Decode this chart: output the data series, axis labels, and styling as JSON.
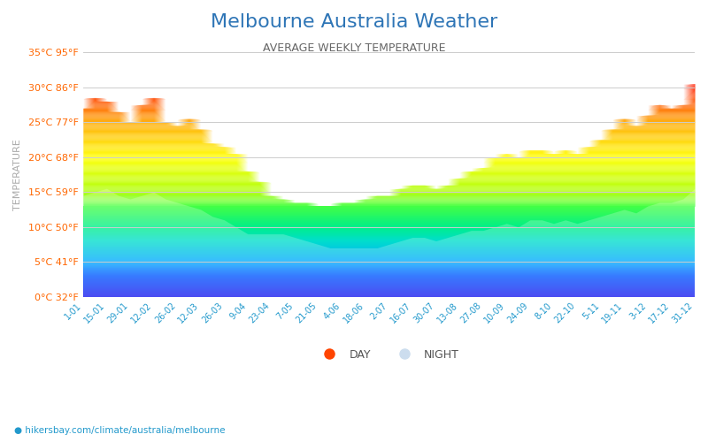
{
  "title": "Melbourne Australia Weather",
  "subtitle": "AVERAGE WEEKLY TEMPERATURE",
  "ylabel": "TEMPERATURE",
  "xlabel_ticks": [
    "1-01",
    "15-01",
    "29-01",
    "12-02",
    "26-02",
    "12-03",
    "26-03",
    "9-04",
    "23-04",
    "7-05",
    "21-05",
    "4-06",
    "18-06",
    "2-07",
    "16-07",
    "30-07",
    "13-08",
    "27-08",
    "10-09",
    "24-09",
    "8-10",
    "22-10",
    "5-11",
    "19-11",
    "3-12",
    "17-12",
    "31-12"
  ],
  "ytick_labels_left": [
    "0°C 32°F",
    "5°C 41°F",
    "10°C 50°F",
    "15°C 59°F",
    "20°C 68°F",
    "25°C 77°F",
    "30°C 86°F",
    "35°C 95°F"
  ],
  "ytick_values": [
    0,
    5,
    10,
    15,
    20,
    25,
    30,
    35
  ],
  "ymin": 0,
  "ymax": 35,
  "title_color": "#2e75b6",
  "subtitle_color": "#666666",
  "ytick_color": "#ff6600",
  "watermark": "hikersbay.com/climate/australia/melbourne",
  "color_stops": [
    [
      0,
      "#1a1aee"
    ],
    [
      3,
      "#0055ff"
    ],
    [
      5,
      "#00aaff"
    ],
    [
      8,
      "#00ddcc"
    ],
    [
      10,
      "#00ee88"
    ],
    [
      13,
      "#44ff44"
    ],
    [
      15,
      "#aaff00"
    ],
    [
      18,
      "#ddff00"
    ],
    [
      20,
      "#ffff00"
    ],
    [
      22,
      "#ffdd00"
    ],
    [
      25,
      "#ffaa00"
    ],
    [
      28,
      "#ff5500"
    ],
    [
      30,
      "#ff2200"
    ],
    [
      35,
      "#ff0000"
    ]
  ],
  "day_values": [
    27.0,
    28.5,
    28.0,
    26.5,
    25.0,
    27.5,
    28.5,
    25.0,
    24.5,
    25.5,
    24.0,
    22.0,
    21.5,
    20.5,
    18.0,
    16.5,
    14.5,
    14.0,
    13.5,
    13.5,
    13.0,
    13.0,
    13.5,
    13.5,
    14.0,
    14.5,
    14.5,
    15.5,
    16.0,
    16.0,
    15.5,
    16.0,
    17.0,
    18.0,
    18.5,
    20.0,
    20.5,
    20.0,
    21.0,
    21.0,
    20.5,
    21.0,
    20.5,
    21.5,
    22.5,
    24.0,
    25.5,
    24.5,
    26.0,
    27.5,
    27.0,
    27.5,
    30.5
  ],
  "night_values": [
    14.5,
    15.0,
    15.5,
    14.5,
    14.0,
    14.5,
    15.0,
    14.0,
    13.5,
    13.0,
    12.5,
    11.5,
    11.0,
    10.0,
    9.0,
    9.0,
    9.0,
    9.0,
    8.5,
    8.0,
    7.5,
    7.0,
    7.0,
    7.0,
    7.0,
    7.0,
    7.5,
    8.0,
    8.5,
    8.5,
    8.0,
    8.5,
    9.0,
    9.5,
    9.5,
    10.0,
    10.5,
    10.0,
    11.0,
    11.0,
    10.5,
    11.0,
    10.5,
    11.0,
    11.5,
    12.0,
    12.5,
    12.0,
    13.0,
    13.5,
    13.5,
    14.0,
    15.5
  ]
}
